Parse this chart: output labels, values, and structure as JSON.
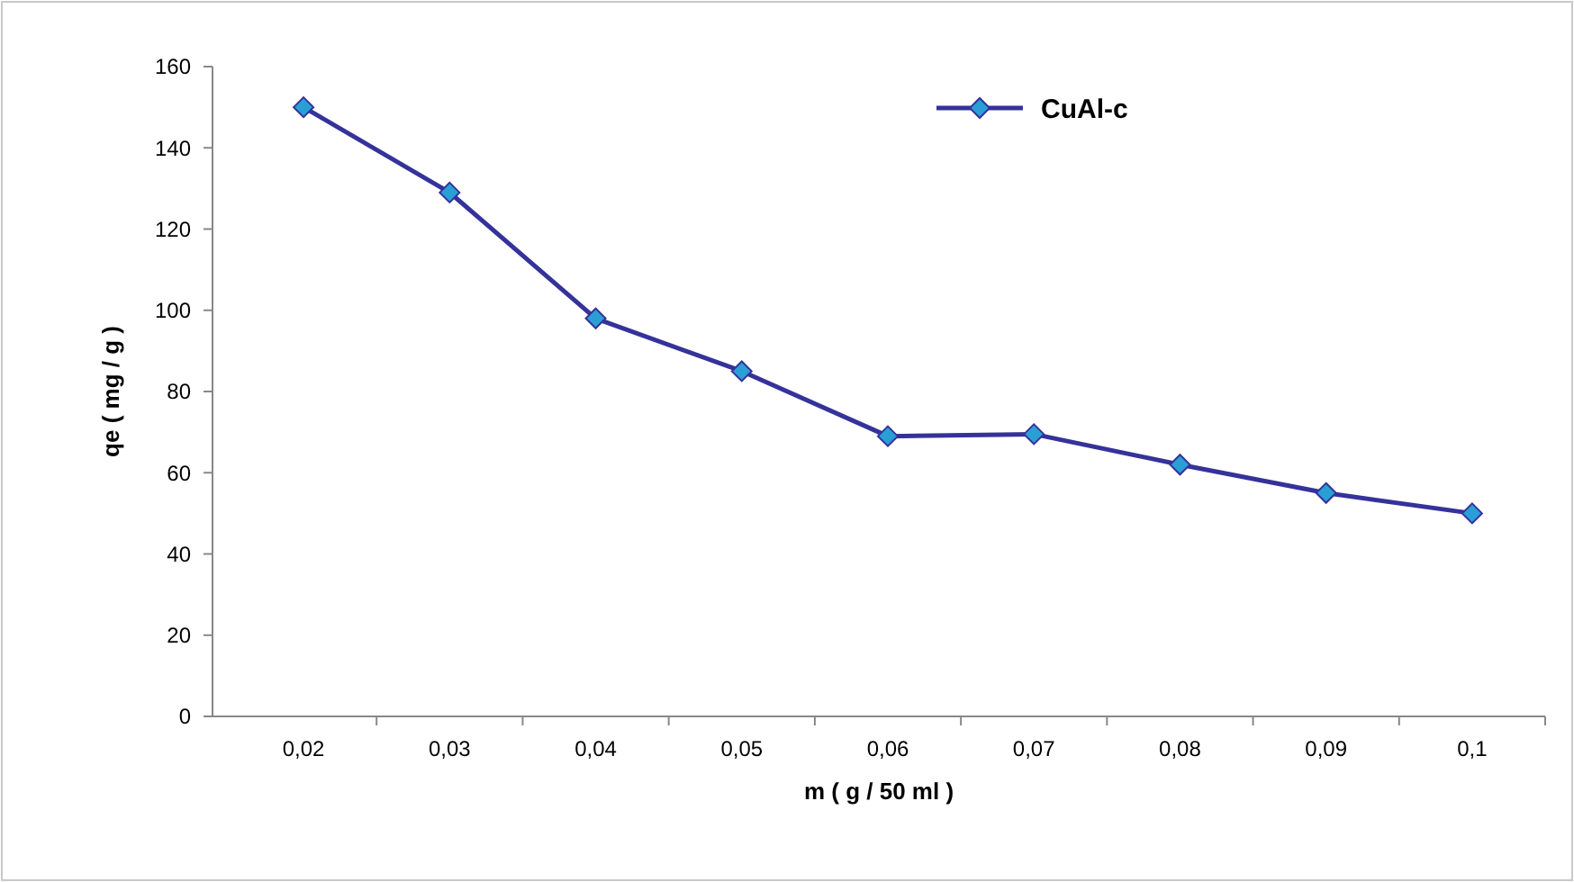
{
  "chart_data": {
    "type": "line",
    "xlabel": "m ( g / 50 ml )",
    "ylabel": "qe ( mg / g )",
    "categories": [
      "0,02",
      "0,03",
      "0,04",
      "0,05",
      "0,06",
      "0,07",
      "0,08",
      "0,09",
      "0,1"
    ],
    "series": [
      {
        "name": "CuAl-c",
        "color": "#35329a",
        "values": [
          150,
          129,
          98,
          85,
          69,
          69.5,
          62,
          55,
          50
        ]
      }
    ],
    "ylim": [
      0,
      160
    ],
    "yticks": [
      0,
      20,
      40,
      60,
      80,
      100,
      120,
      140,
      160
    ],
    "grid": false,
    "legend": "top right",
    "marker": "diamond",
    "line_style": "solid"
  }
}
